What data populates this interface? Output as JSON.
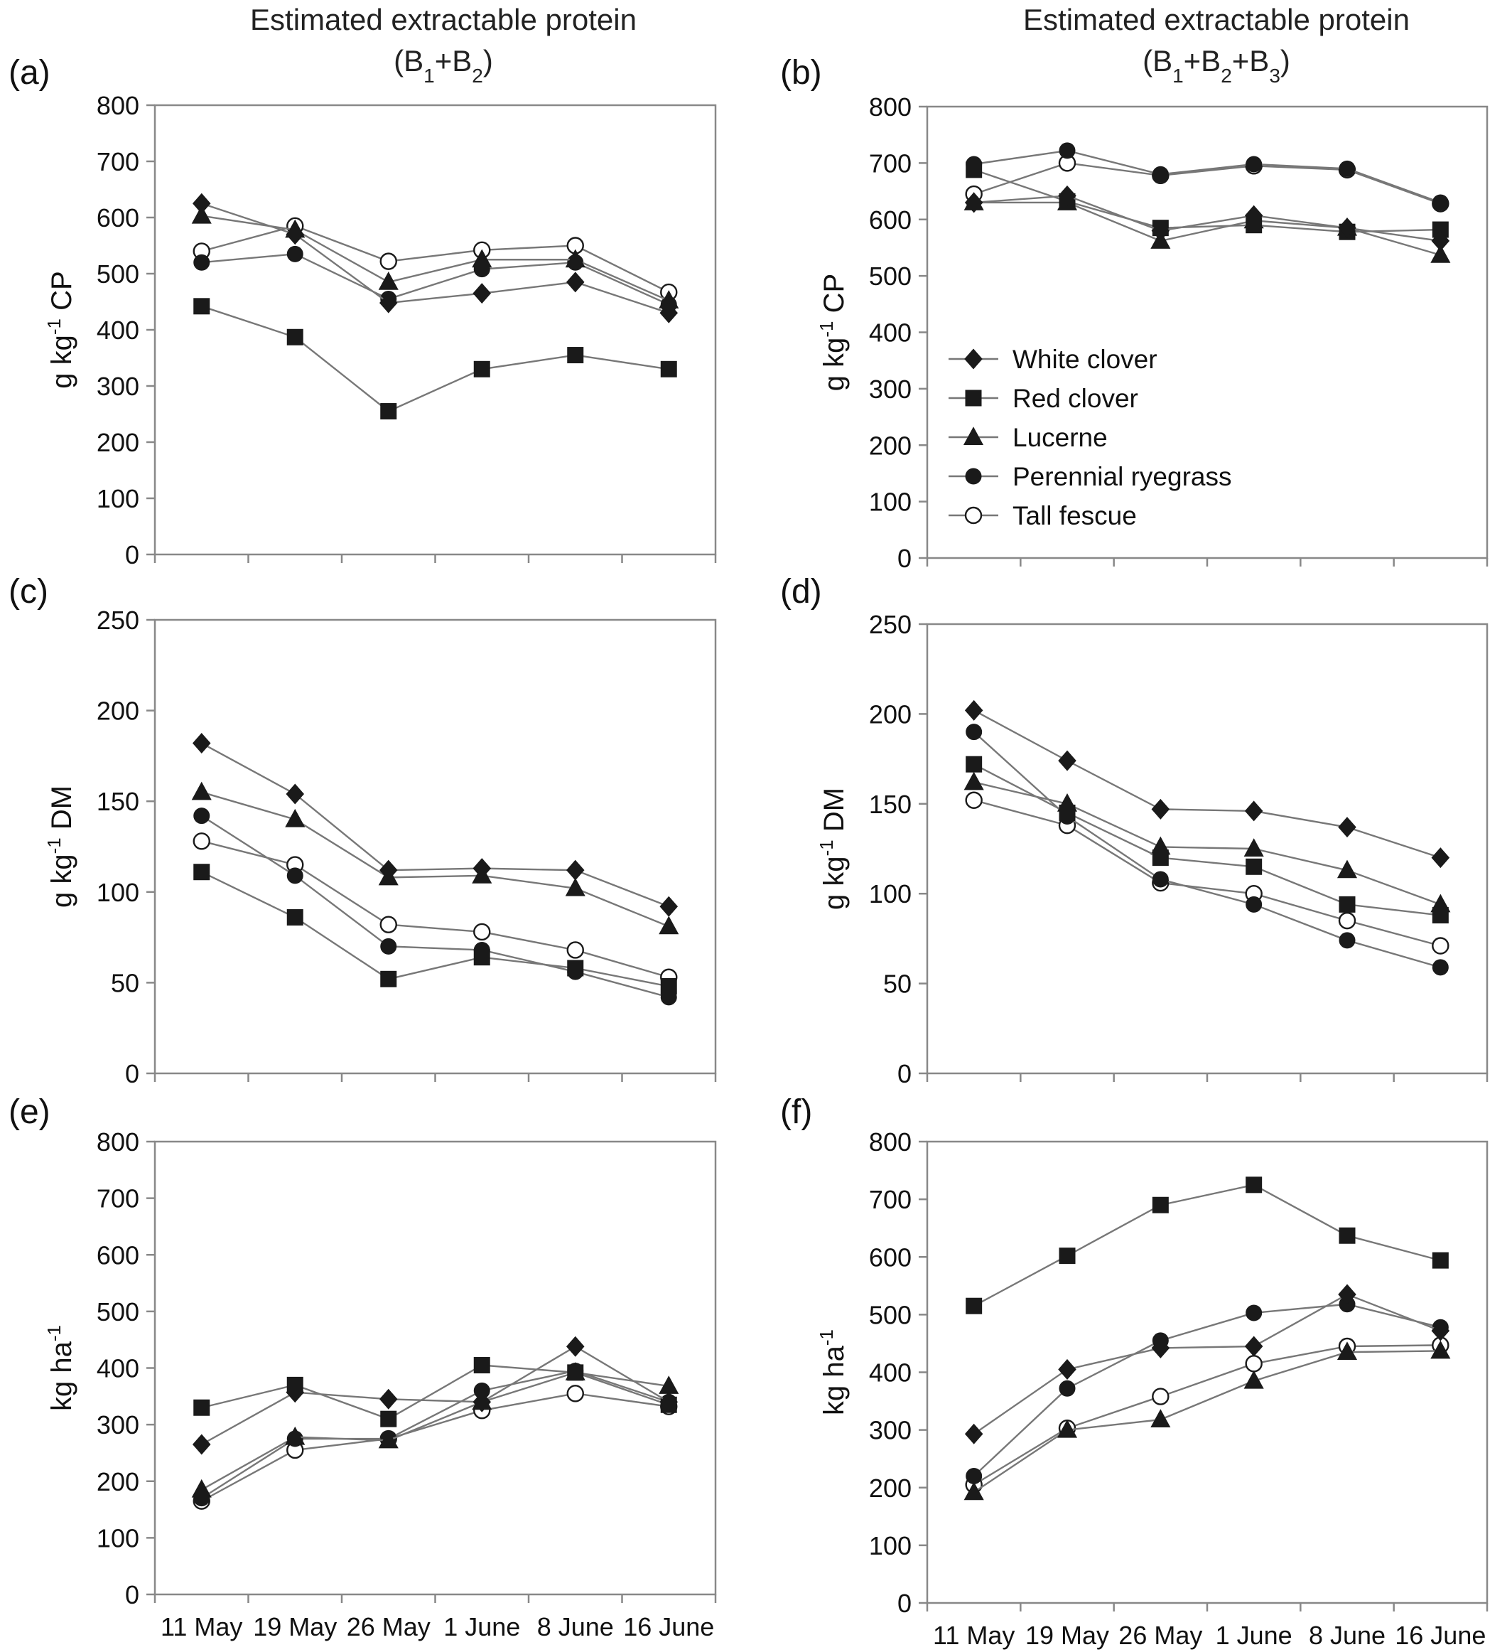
{
  "figure": {
    "titles": [
      {
        "line1": "Estimated extractable protein",
        "line2": "(B1+B2)",
        "line2_parts": [
          {
            "t": "(B"
          },
          {
            "s": "1"
          },
          {
            "t": "+B"
          },
          {
            "s": "2"
          },
          {
            "t": ")"
          }
        ]
      },
      {
        "line1": "Estimated extractable protein",
        "line2": "(B1+B2+B3)",
        "line2_parts": [
          {
            "t": "(B"
          },
          {
            "s": "1"
          },
          {
            "t": "+B"
          },
          {
            "s": "2"
          },
          {
            "t": "+B"
          },
          {
            "s": "3"
          },
          {
            "t": ")"
          }
        ]
      }
    ]
  },
  "legend": {
    "entries": [
      {
        "label": "White clover",
        "marker": "diamond",
        "fill": "#1a1a1a"
      },
      {
        "label": "Red clover",
        "marker": "square",
        "fill": "#1a1a1a"
      },
      {
        "label": "Lucerne",
        "marker": "triangle",
        "fill": "#1a1a1a"
      },
      {
        "label": "Perennial ryegrass",
        "marker": "circle",
        "fill": "#1a1a1a"
      },
      {
        "label": "Tall fescue",
        "marker": "circle",
        "fill": "#ffffff"
      }
    ]
  },
  "chart_data": [
    {
      "panel": "(a)",
      "type": "line",
      "categories": [
        "11 May",
        "19 May",
        "26 May",
        "1 June",
        "8 June",
        "16 June"
      ],
      "show_xtick_labels": false,
      "ylabel": "g kg-1 CP",
      "ylabel_parts": [
        {
          "t": "g kg"
        },
        {
          "u": "-1"
        },
        {
          "t": " CP"
        }
      ],
      "ylim": [
        0,
        800
      ],
      "yticks": [
        0,
        100,
        200,
        300,
        400,
        500,
        600,
        700,
        800
      ],
      "series": [
        {
          "name": "White clover",
          "values": [
            625,
            570,
            448,
            465,
            485,
            430
          ]
        },
        {
          "name": "Red clover",
          "values": [
            442,
            387,
            255,
            330,
            355,
            330
          ]
        },
        {
          "name": "Lucerne",
          "values": [
            603,
            578,
            485,
            525,
            525,
            452
          ]
        },
        {
          "name": "Perennial ryegrass",
          "values": [
            520,
            535,
            455,
            508,
            520,
            445
          ]
        },
        {
          "name": "Tall fescue",
          "values": [
            540,
            585,
            522,
            542,
            550,
            467
          ]
        }
      ]
    },
    {
      "panel": "(b)",
      "type": "line",
      "categories": [
        "11 May",
        "19 May",
        "26 May",
        "1 June",
        "8 June",
        "16 June"
      ],
      "show_xtick_labels": false,
      "ylabel": "g kg-1 CP",
      "ylabel_parts": [
        {
          "t": "g kg"
        },
        {
          "u": "-1"
        },
        {
          "t": " CP"
        }
      ],
      "ylim": [
        0,
        800
      ],
      "yticks": [
        0,
        100,
        200,
        300,
        400,
        500,
        600,
        700,
        800
      ],
      "legend": "inside-left",
      "series": [
        {
          "name": "White clover",
          "values": [
            630,
            642,
            580,
            607,
            585,
            562
          ]
        },
        {
          "name": "Red clover",
          "values": [
            688,
            632,
            585,
            590,
            578,
            582
          ]
        },
        {
          "name": "Lucerne",
          "values": [
            630,
            630,
            562,
            598,
            585,
            537
          ]
        },
        {
          "name": "Perennial ryegrass",
          "values": [
            698,
            722,
            680,
            698,
            690,
            630
          ]
        },
        {
          "name": "Tall fescue",
          "values": [
            645,
            700,
            678,
            695,
            688,
            628
          ]
        }
      ]
    },
    {
      "panel": "(c)",
      "type": "line",
      "categories": [
        "11 May",
        "19 May",
        "26 May",
        "1 June",
        "8 June",
        "16 June"
      ],
      "show_xtick_labels": false,
      "ylabel": "g kg-1 DM",
      "ylabel_parts": [
        {
          "t": "g kg"
        },
        {
          "u": "-1"
        },
        {
          "t": " DM"
        }
      ],
      "ylim": [
        0,
        250
      ],
      "yticks": [
        0,
        50,
        100,
        150,
        200,
        250
      ],
      "series": [
        {
          "name": "White clover",
          "values": [
            182,
            154,
            112,
            113,
            112,
            92
          ]
        },
        {
          "name": "Red clover",
          "values": [
            111,
            86,
            52,
            64,
            58,
            48
          ]
        },
        {
          "name": "Lucerne",
          "values": [
            155,
            140,
            108,
            109,
            102,
            81
          ]
        },
        {
          "name": "Perennial ryegrass",
          "values": [
            142,
            109,
            70,
            68,
            56,
            42
          ]
        },
        {
          "name": "Tall fescue",
          "values": [
            128,
            115,
            82,
            78,
            68,
            53
          ]
        }
      ]
    },
    {
      "panel": "(d)",
      "type": "line",
      "categories": [
        "11 May",
        "19 May",
        "26 May",
        "1 June",
        "8 June",
        "16 June"
      ],
      "show_xtick_labels": false,
      "ylabel": "g kg-1 DM",
      "ylabel_parts": [
        {
          "t": "g kg"
        },
        {
          "u": "-1"
        },
        {
          "t": " DM"
        }
      ],
      "ylim": [
        0,
        250
      ],
      "yticks": [
        0,
        50,
        100,
        150,
        200,
        250
      ],
      "series": [
        {
          "name": "White clover",
          "values": [
            202,
            174,
            147,
            146,
            137,
            120
          ]
        },
        {
          "name": "Red clover",
          "values": [
            172,
            145,
            120,
            115,
            94,
            88
          ]
        },
        {
          "name": "Lucerne",
          "values": [
            162,
            150,
            126,
            125,
            113,
            94
          ]
        },
        {
          "name": "Perennial ryegrass",
          "values": [
            190,
            143,
            108,
            94,
            74,
            59
          ]
        },
        {
          "name": "Tall fescue",
          "values": [
            152,
            138,
            106,
            100,
            85,
            71
          ]
        }
      ]
    },
    {
      "panel": "(e)",
      "type": "line",
      "categories": [
        "11 May",
        "19 May",
        "26 May",
        "1 June",
        "8 June",
        "16 June"
      ],
      "show_xtick_labels": true,
      "ylabel": "kg ha-1",
      "ylabel_parts": [
        {
          "t": "kg ha"
        },
        {
          "u": "-1"
        }
      ],
      "ylim": [
        0,
        800
      ],
      "yticks": [
        0,
        100,
        200,
        300,
        400,
        500,
        600,
        700,
        800
      ],
      "series": [
        {
          "name": "White clover",
          "values": [
            265,
            357,
            345,
            340,
            438,
            340
          ]
        },
        {
          "name": "Red clover",
          "values": [
            330,
            370,
            310,
            405,
            392,
            335
          ]
        },
        {
          "name": "Lucerne",
          "values": [
            185,
            278,
            272,
            340,
            392,
            368
          ]
        },
        {
          "name": "Perennial ryegrass",
          "values": [
            170,
            275,
            275,
            360,
            395,
            340
          ]
        },
        {
          "name": "Tall fescue",
          "values": [
            165,
            255,
            275,
            325,
            355,
            332
          ]
        }
      ]
    },
    {
      "panel": "(f)",
      "type": "line",
      "categories": [
        "11 May",
        "19 May",
        "26 May",
        "1 June",
        "8 June",
        "16 June"
      ],
      "show_xtick_labels": true,
      "ylabel": "kg ha-1",
      "ylabel_parts": [
        {
          "t": "kg ha"
        },
        {
          "u": "-1"
        }
      ],
      "ylim": [
        0,
        800
      ],
      "yticks": [
        0,
        100,
        200,
        300,
        400,
        500,
        600,
        700,
        800
      ],
      "series": [
        {
          "name": "White clover",
          "values": [
            293,
            405,
            442,
            445,
            535,
            472
          ]
        },
        {
          "name": "Red clover",
          "values": [
            515,
            602,
            690,
            725,
            637,
            594
          ]
        },
        {
          "name": "Lucerne",
          "values": [
            192,
            300,
            318,
            385,
            435,
            437
          ]
        },
        {
          "name": "Perennial ryegrass",
          "values": [
            220,
            372,
            455,
            503,
            518,
            478
          ]
        },
        {
          "name": "Tall fescue",
          "values": [
            205,
            303,
            358,
            415,
            445,
            447
          ]
        }
      ]
    }
  ]
}
